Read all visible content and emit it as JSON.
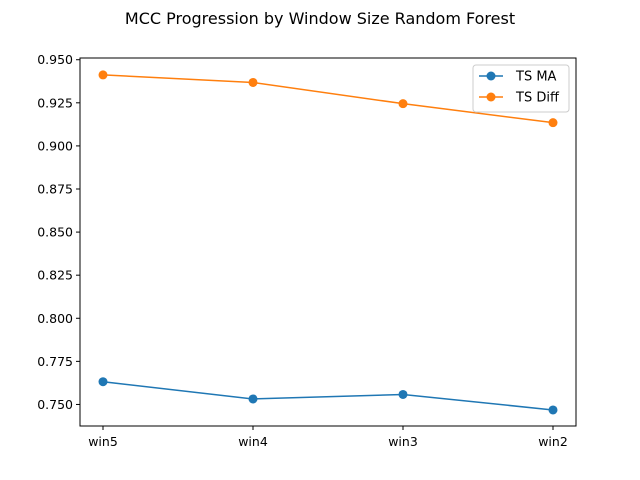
{
  "chart_data": {
    "type": "line",
    "title": "MCC Progression by Window Size Random Forest",
    "xlabel": "",
    "ylabel": "",
    "categories": [
      "win5",
      "win4",
      "win3",
      "win2"
    ],
    "ylim": [
      0.7375,
      0.951
    ],
    "yticks": [
      0.75,
      0.775,
      0.8,
      0.825,
      0.85,
      0.875,
      0.9,
      0.925,
      0.95
    ],
    "ytick_labels": [
      "0.750",
      "0.775",
      "0.800",
      "0.825",
      "0.850",
      "0.875",
      "0.900",
      "0.925",
      "0.950"
    ],
    "grid": false,
    "legend_position": "top-right",
    "series": [
      {
        "name": "TS MA",
        "color": "#1f77b4",
        "values": [
          0.7632,
          0.7532,
          0.7558,
          0.7468
        ]
      },
      {
        "name": "TS Diff",
        "color": "#ff7f0e",
        "values": [
          0.9412,
          0.9368,
          0.9245,
          0.9135
        ]
      }
    ]
  }
}
